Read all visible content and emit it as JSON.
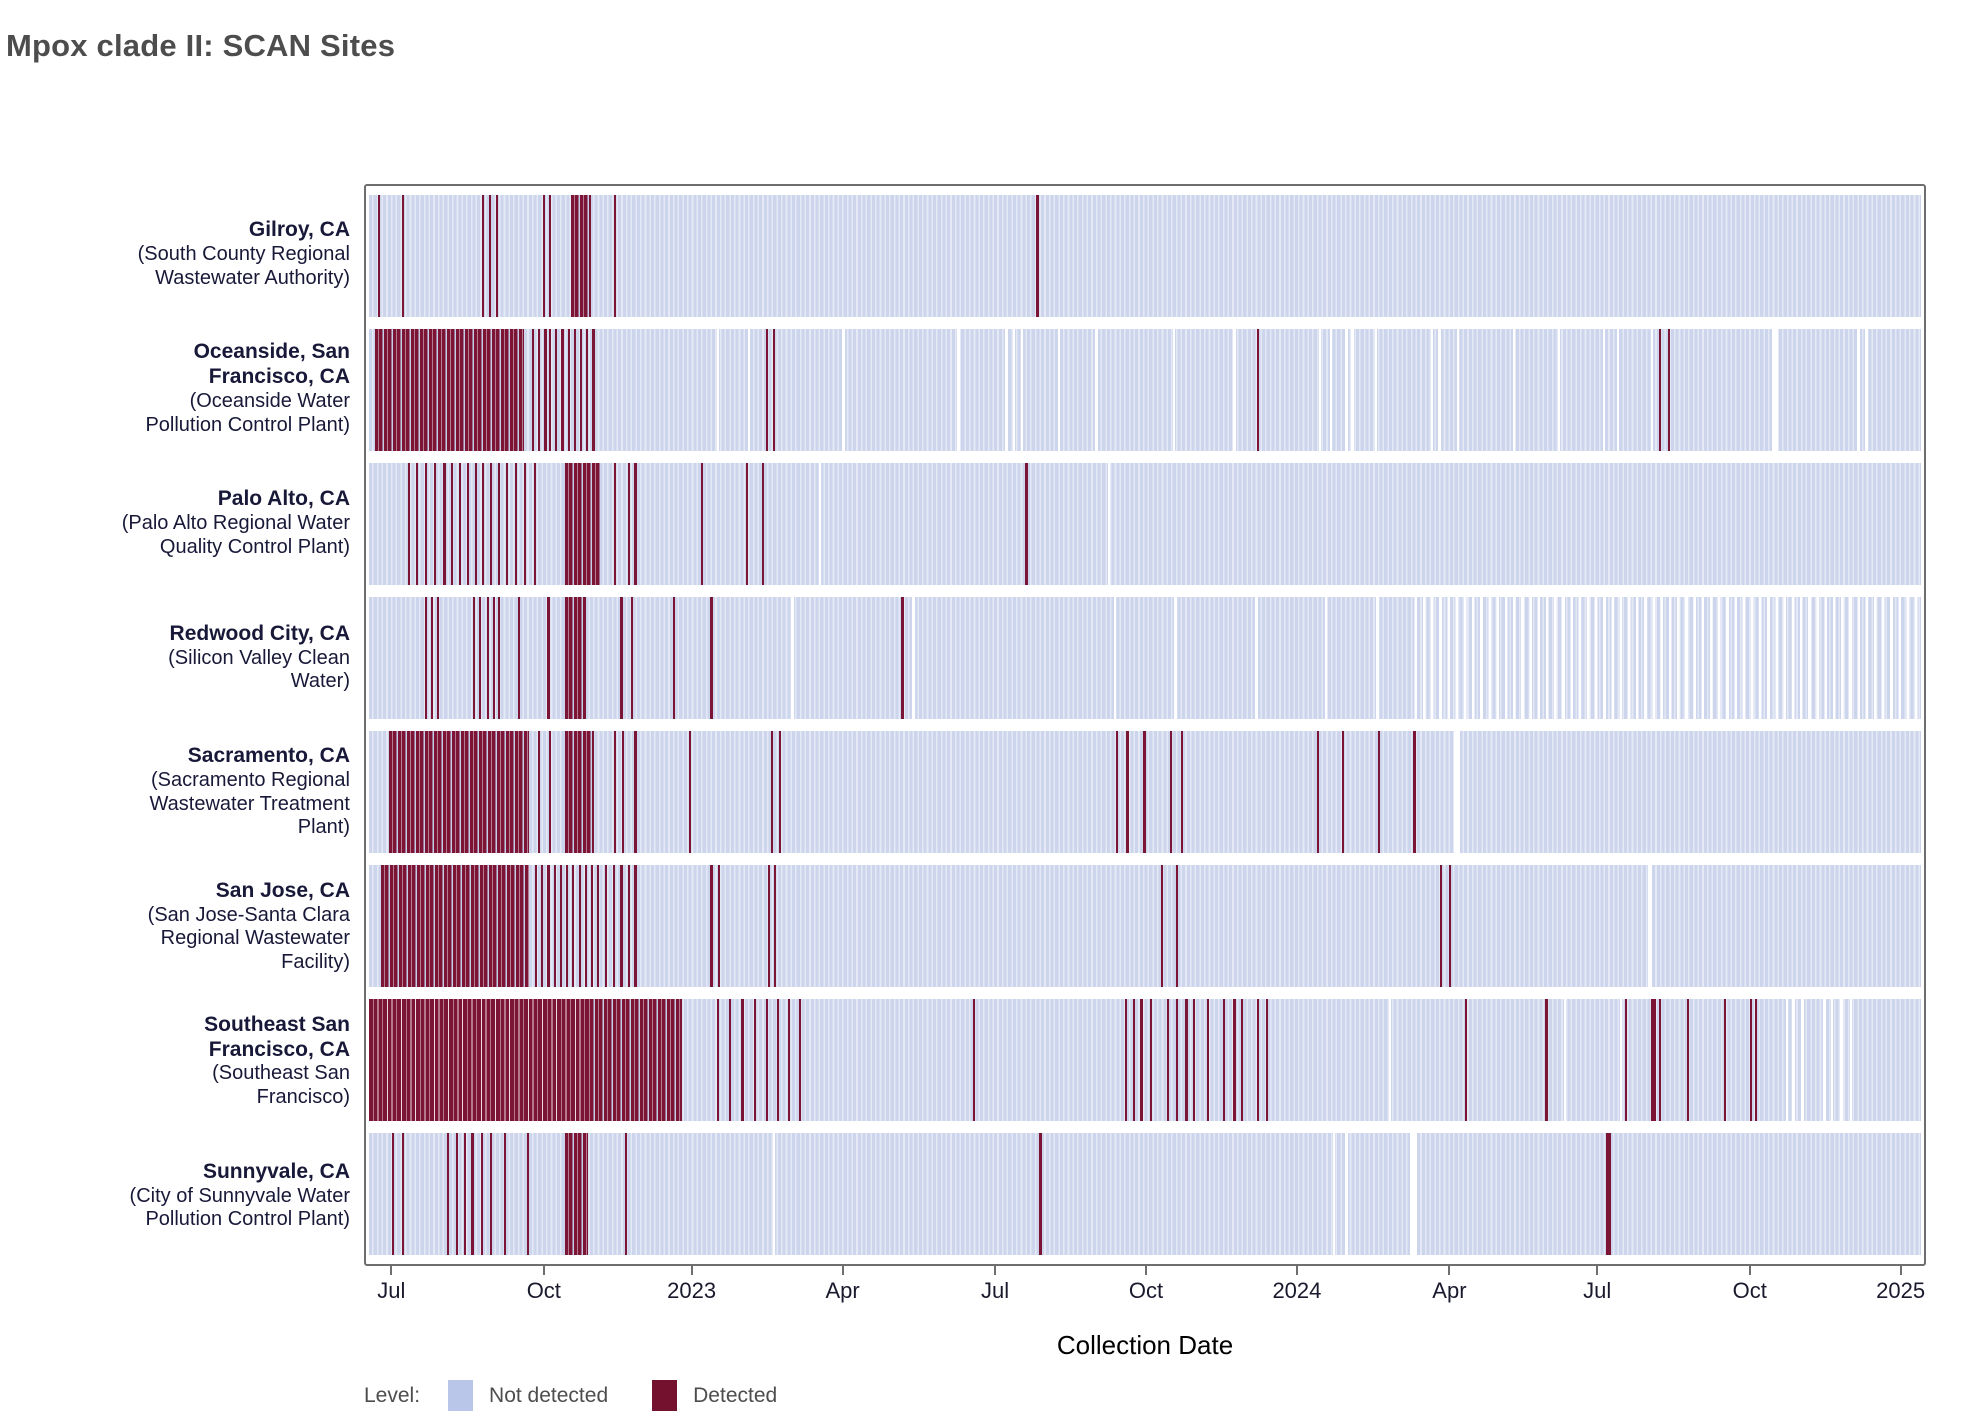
{
  "title": "Mpox clade II: SCAN Sites",
  "x_axis": {
    "label": "Collection Date",
    "ticks": [
      {
        "pos": 0.015,
        "label": "Jul"
      },
      {
        "pos": 0.113,
        "label": "Oct"
      },
      {
        "pos": 0.208,
        "label": "2023"
      },
      {
        "pos": 0.305,
        "label": "Apr"
      },
      {
        "pos": 0.403,
        "label": "Jul"
      },
      {
        "pos": 0.5,
        "label": "Oct"
      },
      {
        "pos": 0.597,
        "label": "2024"
      },
      {
        "pos": 0.695,
        "label": "Apr"
      },
      {
        "pos": 0.79,
        "label": "Jul"
      },
      {
        "pos": 0.888,
        "label": "Oct"
      },
      {
        "pos": 0.985,
        "label": "2025"
      }
    ]
  },
  "legend": {
    "label": "Level:",
    "items": [
      {
        "label": "Not detected",
        "color": "#b9c6ea"
      },
      {
        "label": "Detected",
        "color": "#73112f"
      }
    ]
  },
  "colors": {
    "detected": "#7c1535",
    "not_detected_band": "#cdd5ec",
    "frame": "#6e6e6e",
    "site_label": "#181838",
    "title": "#4d4d4d"
  },
  "chart_data": {
    "type": "heatmap",
    "note": "Detection timeline; positions are fractions of the x axis (approx mid-Jun 2022 to Jan 2025)",
    "x_domain": [
      "2022-06",
      "2025-01"
    ],
    "sites": [
      {
        "city_lines": [
          "Gilroy, CA"
        ],
        "facility_lines": [
          "(South County Regional",
          "Wastewater Authority)"
        ],
        "blocks_dense": [
          {
            "x": 0.13,
            "w": 0.013
          }
        ],
        "blocks_solid": [],
        "detected": [
          0.006,
          0.021,
          0.073,
          0.077,
          0.082,
          0.112,
          0.116,
          0.158,
          0.43
        ],
        "gaps": [],
        "sparse_zones": []
      },
      {
        "city_lines": [
          "Oceanside, San",
          "Francisco, CA"
        ],
        "facility_lines": [
          "(Oceanside Water",
          "Pollution Control Plant)"
        ],
        "blocks_dense": [
          {
            "x": 0.004,
            "w": 0.096
          }
        ],
        "blocks_solid": [],
        "detected": [
          0.105,
          0.109,
          0.113,
          0.116,
          0.12,
          0.124,
          0.128,
          0.132,
          0.136,
          0.14,
          0.144,
          0.256,
          0.26,
          0.572,
          0.831,
          0.837
        ],
        "gaps": [
          0.224,
          0.244,
          0.305,
          0.379,
          0.41,
          0.415,
          0.42,
          0.444,
          0.468,
          0.518,
          0.557,
          0.612,
          0.619,
          0.629,
          0.633,
          0.648,
          0.684,
          0.689,
          0.701,
          0.737,
          0.766,
          0.795,
          0.804,
          0.826,
          {
            "x": 0.904,
            "w": 0.004
          },
          0.959,
          0.964
        ],
        "sparse_zones": []
      },
      {
        "city_lines": [
          "Palo Alto, CA"
        ],
        "facility_lines": [
          "(Palo Alto Regional Water",
          "Quality Control Plant)"
        ],
        "blocks_dense": [
          {
            "x": 0.126,
            "w": 0.023
          }
        ],
        "blocks_solid": [],
        "detected": [
          0.025,
          0.03,
          0.036,
          0.042,
          0.048,
          0.053,
          0.058,
          0.063,
          0.068,
          0.073,
          0.078,
          0.083,
          0.088,
          0.094,
          0.1,
          0.106,
          0.158,
          0.167,
          0.171,
          0.214,
          0.243,
          0.253,
          0.423
        ],
        "gaps": [
          0.29,
          0.476
        ],
        "sparse_zones": []
      },
      {
        "city_lines": [
          "Redwood City, CA"
        ],
        "facility_lines": [
          "(Silicon Valley Clean",
          "Water)"
        ],
        "blocks_dense": [
          {
            "x": 0.126,
            "w": 0.014
          }
        ],
        "blocks_solid": [],
        "detected": [
          0.036,
          0.04,
          0.044,
          0.067,
          0.071,
          0.076,
          0.08,
          0.083,
          0.096,
          0.115,
          0.162,
          0.169,
          0.196,
          0.22,
          0.343
        ],
        "gaps": [
          0.272,
          0.35,
          0.48,
          0.519,
          0.571,
          0.616,
          0.649
        ],
        "sparse_zones": [
          {
            "x": 0.67,
            "w": 0.33
          }
        ]
      },
      {
        "city_lines": [
          "Sacramento, CA"
        ],
        "facility_lines": [
          "(Sacramento Regional",
          "Wastewater Treatment",
          "Plant)"
        ],
        "blocks_dense": [
          {
            "x": 0.013,
            "w": 0.09
          },
          {
            "x": 0.126,
            "w": 0.019
          }
        ],
        "blocks_solid": [],
        "detected": [
          0.109,
          0.116,
          0.158,
          0.163,
          0.171,
          0.206,
          0.259,
          0.264,
          0.481,
          0.488,
          0.499,
          0.516,
          0.523,
          0.611,
          0.627,
          0.65,
          0.673
        ],
        "gaps": [
          {
            "x": 0.699,
            "w": 0.004
          }
        ],
        "sparse_zones": []
      },
      {
        "city_lines": [
          "San Jose, CA"
        ],
        "facility_lines": [
          "(San Jose-Santa Clara",
          "Regional Wastewater",
          "Facility)"
        ],
        "blocks_dense": [
          {
            "x": 0.008,
            "w": 0.095
          }
        ],
        "blocks_solid": [],
        "detected": [
          0.107,
          0.111,
          0.115,
          0.119,
          0.123,
          0.127,
          0.131,
          0.135,
          0.139,
          0.143,
          0.147,
          0.152,
          0.157,
          0.162,
          0.167,
          0.171,
          0.22,
          0.225,
          0.257,
          0.261,
          0.51,
          0.52,
          0.69,
          0.696
        ],
        "gaps": [
          {
            "x": 0.824,
            "w": 0.003
          }
        ],
        "sparse_zones": []
      },
      {
        "city_lines": [
          "Southeast San",
          "Francisco, CA"
        ],
        "facility_lines": [
          "(Southeast San",
          "Francisco)"
        ],
        "blocks_dense": [
          {
            "x": 0.14,
            "w": 0.062
          }
        ],
        "blocks_solid": [
          {
            "x": 0.0,
            "w": 0.14
          }
        ],
        "detected": [
          0.224,
          0.232,
          0.24,
          0.248,
          0.256,
          0.263,
          0.27,
          0.277,
          0.389,
          0.487,
          0.492,
          0.497,
          0.503,
          0.514,
          0.52,
          0.526,
          0.531,
          0.54,
          0.55,
          0.557,
          0.562,
          0.572,
          0.578,
          0.706,
          0.758,
          0.809,
          {
            "x": 0.826,
            "w": 0.003
          },
          0.831,
          0.849,
          0.873,
          0.89,
          0.893
        ],
        "gaps": [
          0.657,
          0.77,
          0.806,
          0.913,
          0.917,
          0.923,
          0.937,
          0.942,
          0.948,
          0.954
        ],
        "sparse_zones": []
      },
      {
        "city_lines": [
          "Sunnyvale, CA"
        ],
        "facility_lines": [
          "(City of Sunnyvale Water",
          "Pollution Control Plant)"
        ],
        "blocks_dense": [
          {
            "x": 0.126,
            "w": 0.015
          }
        ],
        "blocks_solid": [],
        "detected": [
          0.015,
          0.021,
          0.05,
          0.056,
          0.061,
          0.066,
          0.072,
          0.078,
          0.087,
          0.102,
          0.165,
          0.432,
          {
            "x": 0.797,
            "w": 0.003
          }
        ],
        "gaps": [
          0.26,
          0.621,
          0.629,
          {
            "x": 0.671,
            "w": 0.004
          }
        ],
        "sparse_zones": []
      }
    ]
  }
}
